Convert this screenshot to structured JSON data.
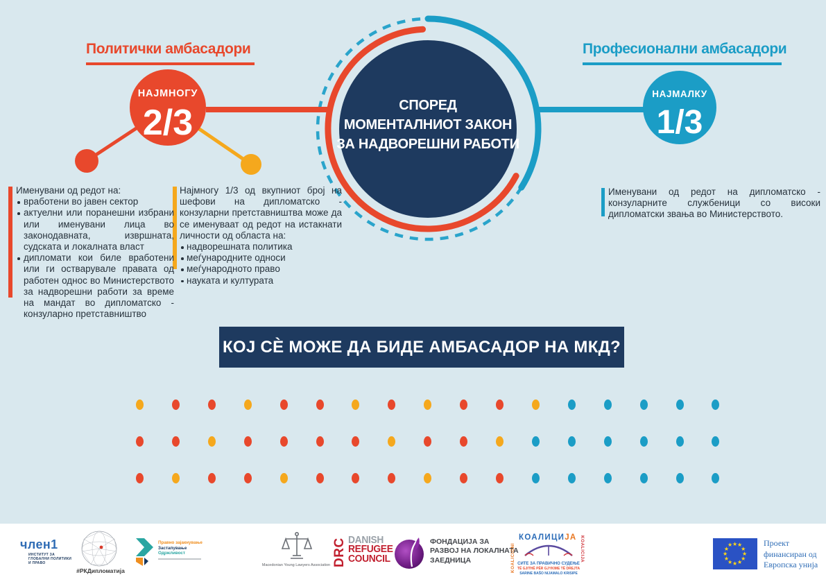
{
  "colors": {
    "background": "#d9e8ee",
    "orange": "#e8482c",
    "yellow": "#f5a81d",
    "blue": "#1b9dc6",
    "dashed_ring_blue": "#2aa4cb",
    "navy": "#1e3a5f",
    "text": "#27323c"
  },
  "left": {
    "heading": "Политички амбасадори",
    "badge_label": "НАЈМНОГУ",
    "badge_value": "2/3",
    "block1": {
      "intro": "Именувани од редот на:",
      "items": [
        "вработени во јавен сектор",
        "актуелни или поранешни избрани или именувани лица во законодавната, извршната, судската и локалната власт",
        "дипломати кои биле вработени или ги остварувале правата од работен однос во Министерството за надворешни работи за време на мандат во дипломатско - конзуларно претставништво"
      ]
    },
    "block2": {
      "intro": "Најмногу 1/3 од вкупниот број на шефови на дипломатско - конзуларни претставништва може да се именуваат од редот на истакнати личности од областа на:",
      "items": [
        "надворешната политика",
        "меѓународните односи",
        "меѓународното право",
        "науката и културата"
      ]
    }
  },
  "right": {
    "heading": "Професионални амбасадори",
    "badge_label": "НАЈМАЛКУ",
    "badge_value": "1/3",
    "note": "Именувани од редот на дипломатско - конзуларните службеници со високи дипломатски звања во Министерството."
  },
  "center": {
    "line1": "СПОРЕД",
    "line2": "МОМЕНТАЛНИОТ ЗАКОН",
    "line3": "ЗА НАДВОРЕШНИ РАБОТИ"
  },
  "banner": {
    "title": "КОЈ СЀ МОЖЕ ДА БИДЕ АМБАСАДОР НА МКД?"
  },
  "dots_grid": {
    "legend": {
      "o": "#e8482c",
      "y": "#f5a81d",
      "b": "#1b9dc6"
    },
    "rows": [
      [
        "y",
        "o",
        "o",
        "y",
        "o",
        "o",
        "y",
        "o",
        "y",
        "o",
        "o",
        "y",
        "b",
        "b",
        "b",
        "b",
        "b"
      ],
      [
        "o",
        "o",
        "y",
        "o",
        "o",
        "o",
        "o",
        "y",
        "o",
        "o",
        "y",
        "b",
        "b",
        "b",
        "b",
        "b",
        "b"
      ],
      [
        "o",
        "y",
        "o",
        "o",
        "y",
        "o",
        "o",
        "o",
        "y",
        "o",
        "o",
        "b",
        "b",
        "b",
        "b",
        "b",
        "b"
      ]
    ]
  },
  "footer": {
    "chlen1": {
      "title": "член1",
      "lines": [
        "ИНСТИТУТ ЗА",
        "ГЛОБАЛНИ ПОЛИТИКИ",
        "И ПРАВО"
      ]
    },
    "diplomatija": {
      "label": "#РКДипломатија"
    },
    "pravno": {
      "lines": [
        "Правно зајакнување",
        "Застапување",
        "Одржливост"
      ]
    },
    "myla": {
      "label": "Macedonian Young Lawyers Association"
    },
    "drc": {
      "vertical": "DRC",
      "lines": [
        "DANISH",
        "REFUGEE",
        "COUNCIL"
      ]
    },
    "fondacija": {
      "lines": [
        "ФОНДАЦИЈА ЗА",
        "РАЗВОЈ НА ЛОКАЛНАТА",
        "ЗАЕДНИЦА"
      ]
    },
    "koalicija": {
      "left_vertical": "KOALICIONI",
      "top_blue": "КОАЛИЦИ",
      "top_orange": "ЈА",
      "right_vertical": "KOALICIJA",
      "lines": [
        "СИТЕ ЗА ПРАВИЧНО СУДЕЊЕ",
        "TË GJITHË PËR GJYKIME TË DREJTA",
        "SARINE BAŠO NIJAMALO KRISIPE"
      ]
    },
    "eu": {
      "lines": [
        "Проект",
        "финансиран од",
        "Европска унија"
      ]
    }
  }
}
